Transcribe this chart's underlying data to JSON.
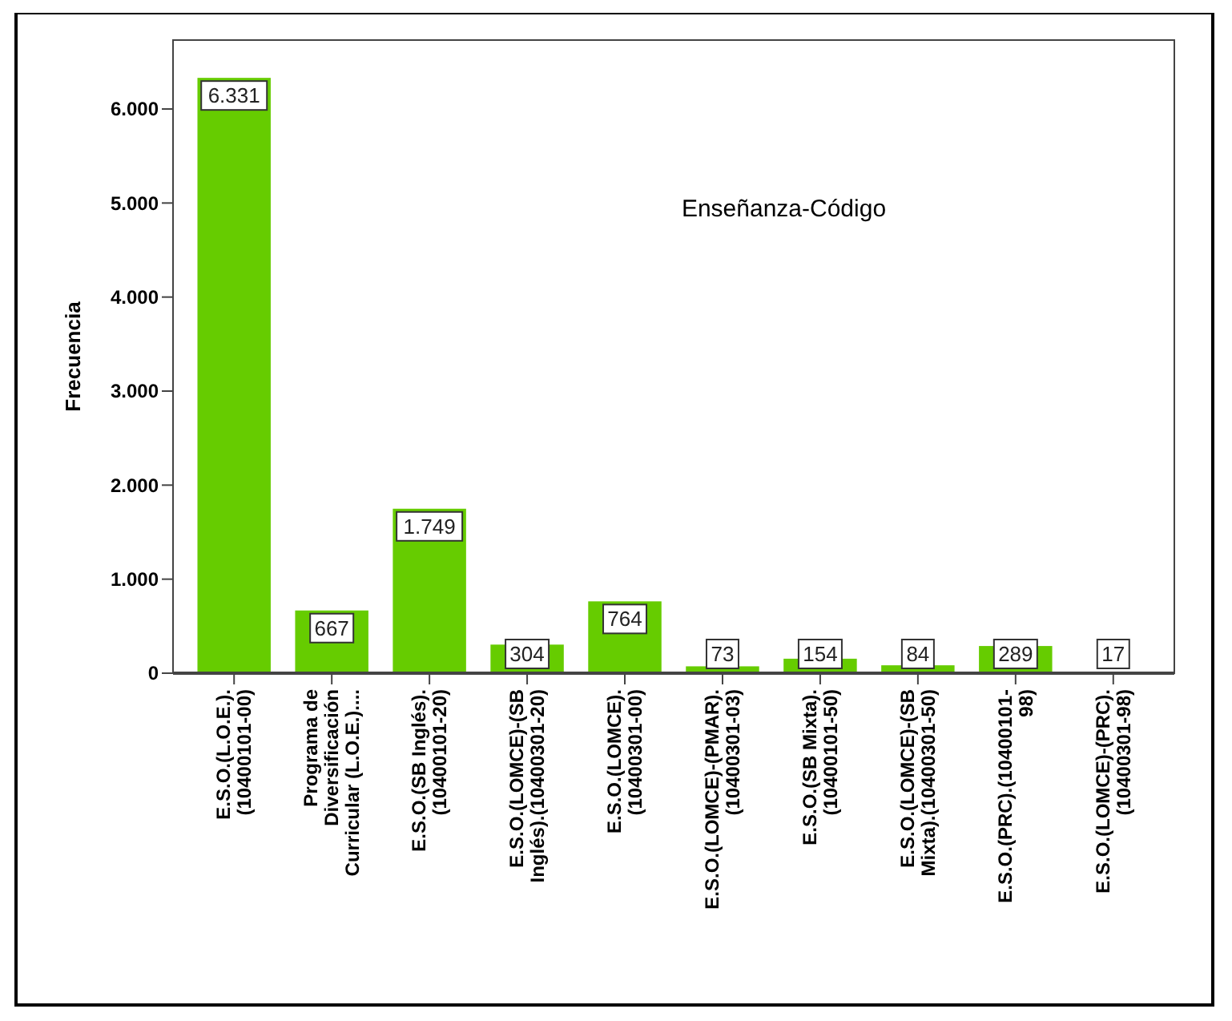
{
  "chart_data": {
    "type": "bar",
    "title": "Enseñanza-Código",
    "ylabel": "Frecuencia",
    "categories": [
      "E.S.O.(L.O.E.).\n(10400101-00)",
      "Programa de\nDiversificación\nCurricular (L.O.E.)....",
      "E.S.O.(SB Inglés).\n(10400101-20)",
      "E.S.O.(LOMCE)-(SB\nInglés).(10400301-20)",
      "E.S.O.(LOMCE).\n(10400301-00)",
      "E.S.O.(LOMCE)-(PMAR).\n(10400301-03)",
      "E.S.O.(SB Mixta).\n(10400101-50)",
      "E.S.O.(LOMCE)-(SB\nMixta).(10400301-50)",
      "E.S.O.(PRC).(10400101-\n98)",
      "E.S.O.(LOMCE)-(PRC).\n(10400301-98)"
    ],
    "values": [
      6331,
      667,
      1749,
      304,
      764,
      73,
      154,
      84,
      289,
      17
    ],
    "value_labels": [
      "6.331",
      "667",
      "1.749",
      "304",
      "764",
      "73",
      "154",
      "84",
      "289",
      "17"
    ],
    "color": "#66cc00",
    "ylim": [
      0,
      6733
    ],
    "yticks": [
      {
        "value": 0,
        "label": "0"
      },
      {
        "value": 1000,
        "label": "1.000"
      },
      {
        "value": 2000,
        "label": "2.000"
      },
      {
        "value": 3000,
        "label": "3.000"
      },
      {
        "value": 4000,
        "label": "4.000"
      },
      {
        "value": 5000,
        "label": "5.000"
      },
      {
        "value": 6000,
        "label": "6.000"
      }
    ],
    "grid": false
  }
}
